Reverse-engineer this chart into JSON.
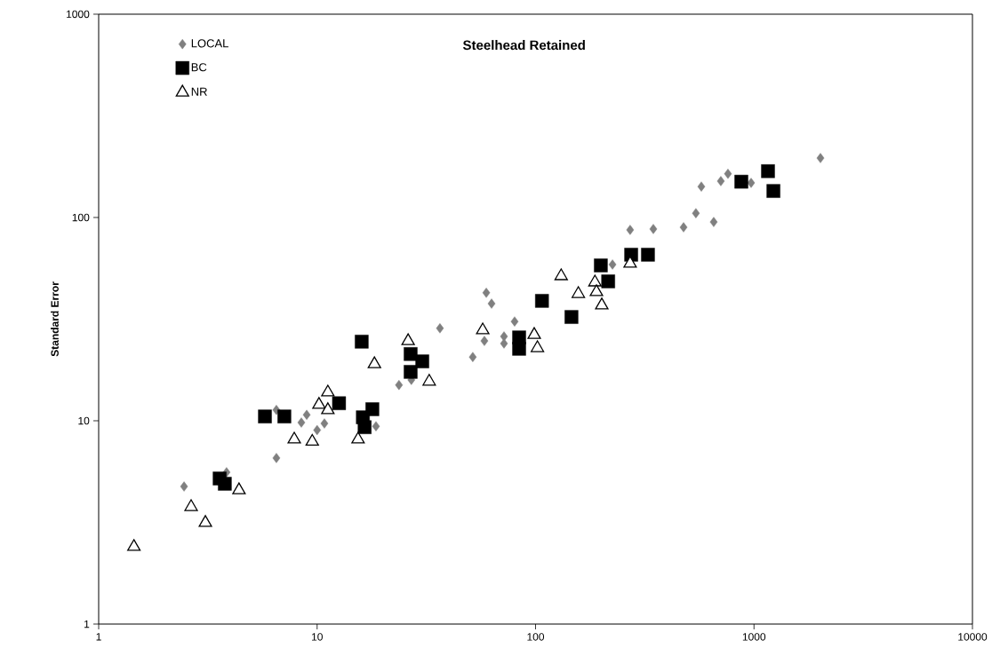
{
  "chart_data": {
    "type": "scatter",
    "title": "Steelhead Retained",
    "ylabel": "Standard Error",
    "log": "xy",
    "grid": false,
    "legend": "top left",
    "xlim": [
      1,
      10000
    ],
    "xticks": [
      1,
      10,
      100,
      1000,
      10000
    ],
    "ylim": [
      1,
      1000
    ],
    "yticks": [
      1,
      10,
      100,
      1000
    ],
    "series": [
      {
        "name": "LOCAL",
        "color": "#808080",
        "marker": "diamond",
        "x": [
          2.46,
          3.85,
          6.51,
          6.51,
          8.47,
          8.96,
          10.0,
          10.8,
          18.6,
          23.7,
          27.0,
          36.5,
          51.6,
          58.3,
          59.5,
          62.9,
          71.7,
          71.7,
          80.2,
          225,
          271,
          346,
          476,
          542,
          654,
          574,
          705,
          760,
          970,
          2015
        ],
        "values": [
          4.75,
          5.58,
          11.3,
          6.56,
          9.8,
          10.7,
          9.0,
          9.7,
          9.4,
          15.0,
          15.9,
          28.5,
          20.6,
          24.7,
          42.6,
          37.7,
          26.0,
          24.0,
          30.8,
          58.7,
          86.9,
          87.8,
          89.5,
          105,
          95,
          142,
          151,
          164,
          148,
          196
        ]
      },
      {
        "name": "BC",
        "color": "#000000",
        "marker": "square",
        "x": [
          5.77,
          7.08,
          3.58,
          3.78,
          12.6,
          16.0,
          17.9,
          16.2,
          16.5,
          26.8,
          30.3,
          26.8,
          107,
          146,
          84.1,
          84.1,
          199,
          215,
          274,
          327,
          875,
          1159,
          1227
        ],
        "values": [
          10.5,
          10.5,
          5.2,
          4.9,
          12.2,
          24.5,
          11.4,
          10.4,
          9.3,
          21.3,
          19.6,
          17.4,
          38.9,
          32.4,
          25.7,
          22.6,
          58.1,
          48.5,
          65.6,
          65.6,
          150,
          169,
          135
        ]
      },
      {
        "name": "NR",
        "color": "#000000",
        "marker": "triangle",
        "x": [
          1.45,
          2.65,
          3.08,
          4.39,
          7.86,
          9.5,
          15.4,
          11.2,
          10.2,
          11.2,
          18.3,
          26.1,
          32.6,
          57.3,
          98.6,
          102,
          131,
          157,
          187,
          190,
          201,
          271
        ],
        "values": [
          2.4,
          3.77,
          3.15,
          4.56,
          8.1,
          7.9,
          8.1,
          13.8,
          12.0,
          11.3,
          19.0,
          24.7,
          15.6,
          27.9,
          26.5,
          22.8,
          51.5,
          42.1,
          48.0,
          43.0,
          37.0,
          59.3
        ]
      }
    ]
  }
}
